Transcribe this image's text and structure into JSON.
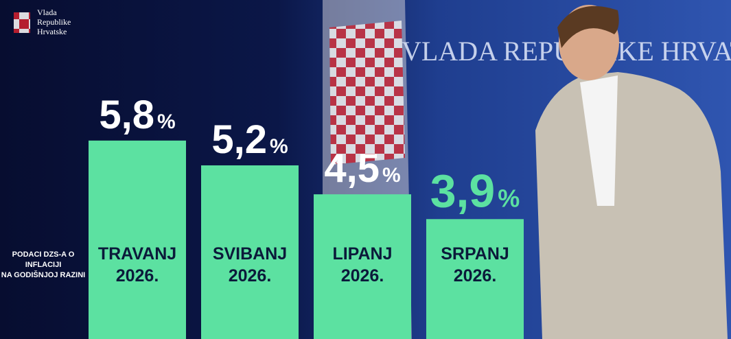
{
  "logo": {
    "text": [
      "Vlada",
      "Republike",
      "Hrvatske"
    ]
  },
  "backdrop_text": "VLADA REPUBLIKE HRVATSKE",
  "chart_data": {
    "type": "bar",
    "note": [
      "PODACI DZS-A O",
      "INFLACIJI",
      "NA GODIŠNJOJ RAZINI"
    ],
    "categories": [
      "TRAVANJ 2026.",
      "SVIBANJ 2026.",
      "LIPANJ 2026.",
      "SRPANJ 2026."
    ],
    "values": [
      5.8,
      5.2,
      4.5,
      3.9
    ],
    "value_labels": [
      "5,8 %",
      "5,2 %",
      "4,5 %",
      "3,9 %"
    ],
    "value_label_colors": [
      "#ffffff",
      "#ffffff",
      "#ffffff",
      "#5ce1a1"
    ],
    "color": "#5ce1a1",
    "ylim": [
      1,
      9.2
    ]
  }
}
